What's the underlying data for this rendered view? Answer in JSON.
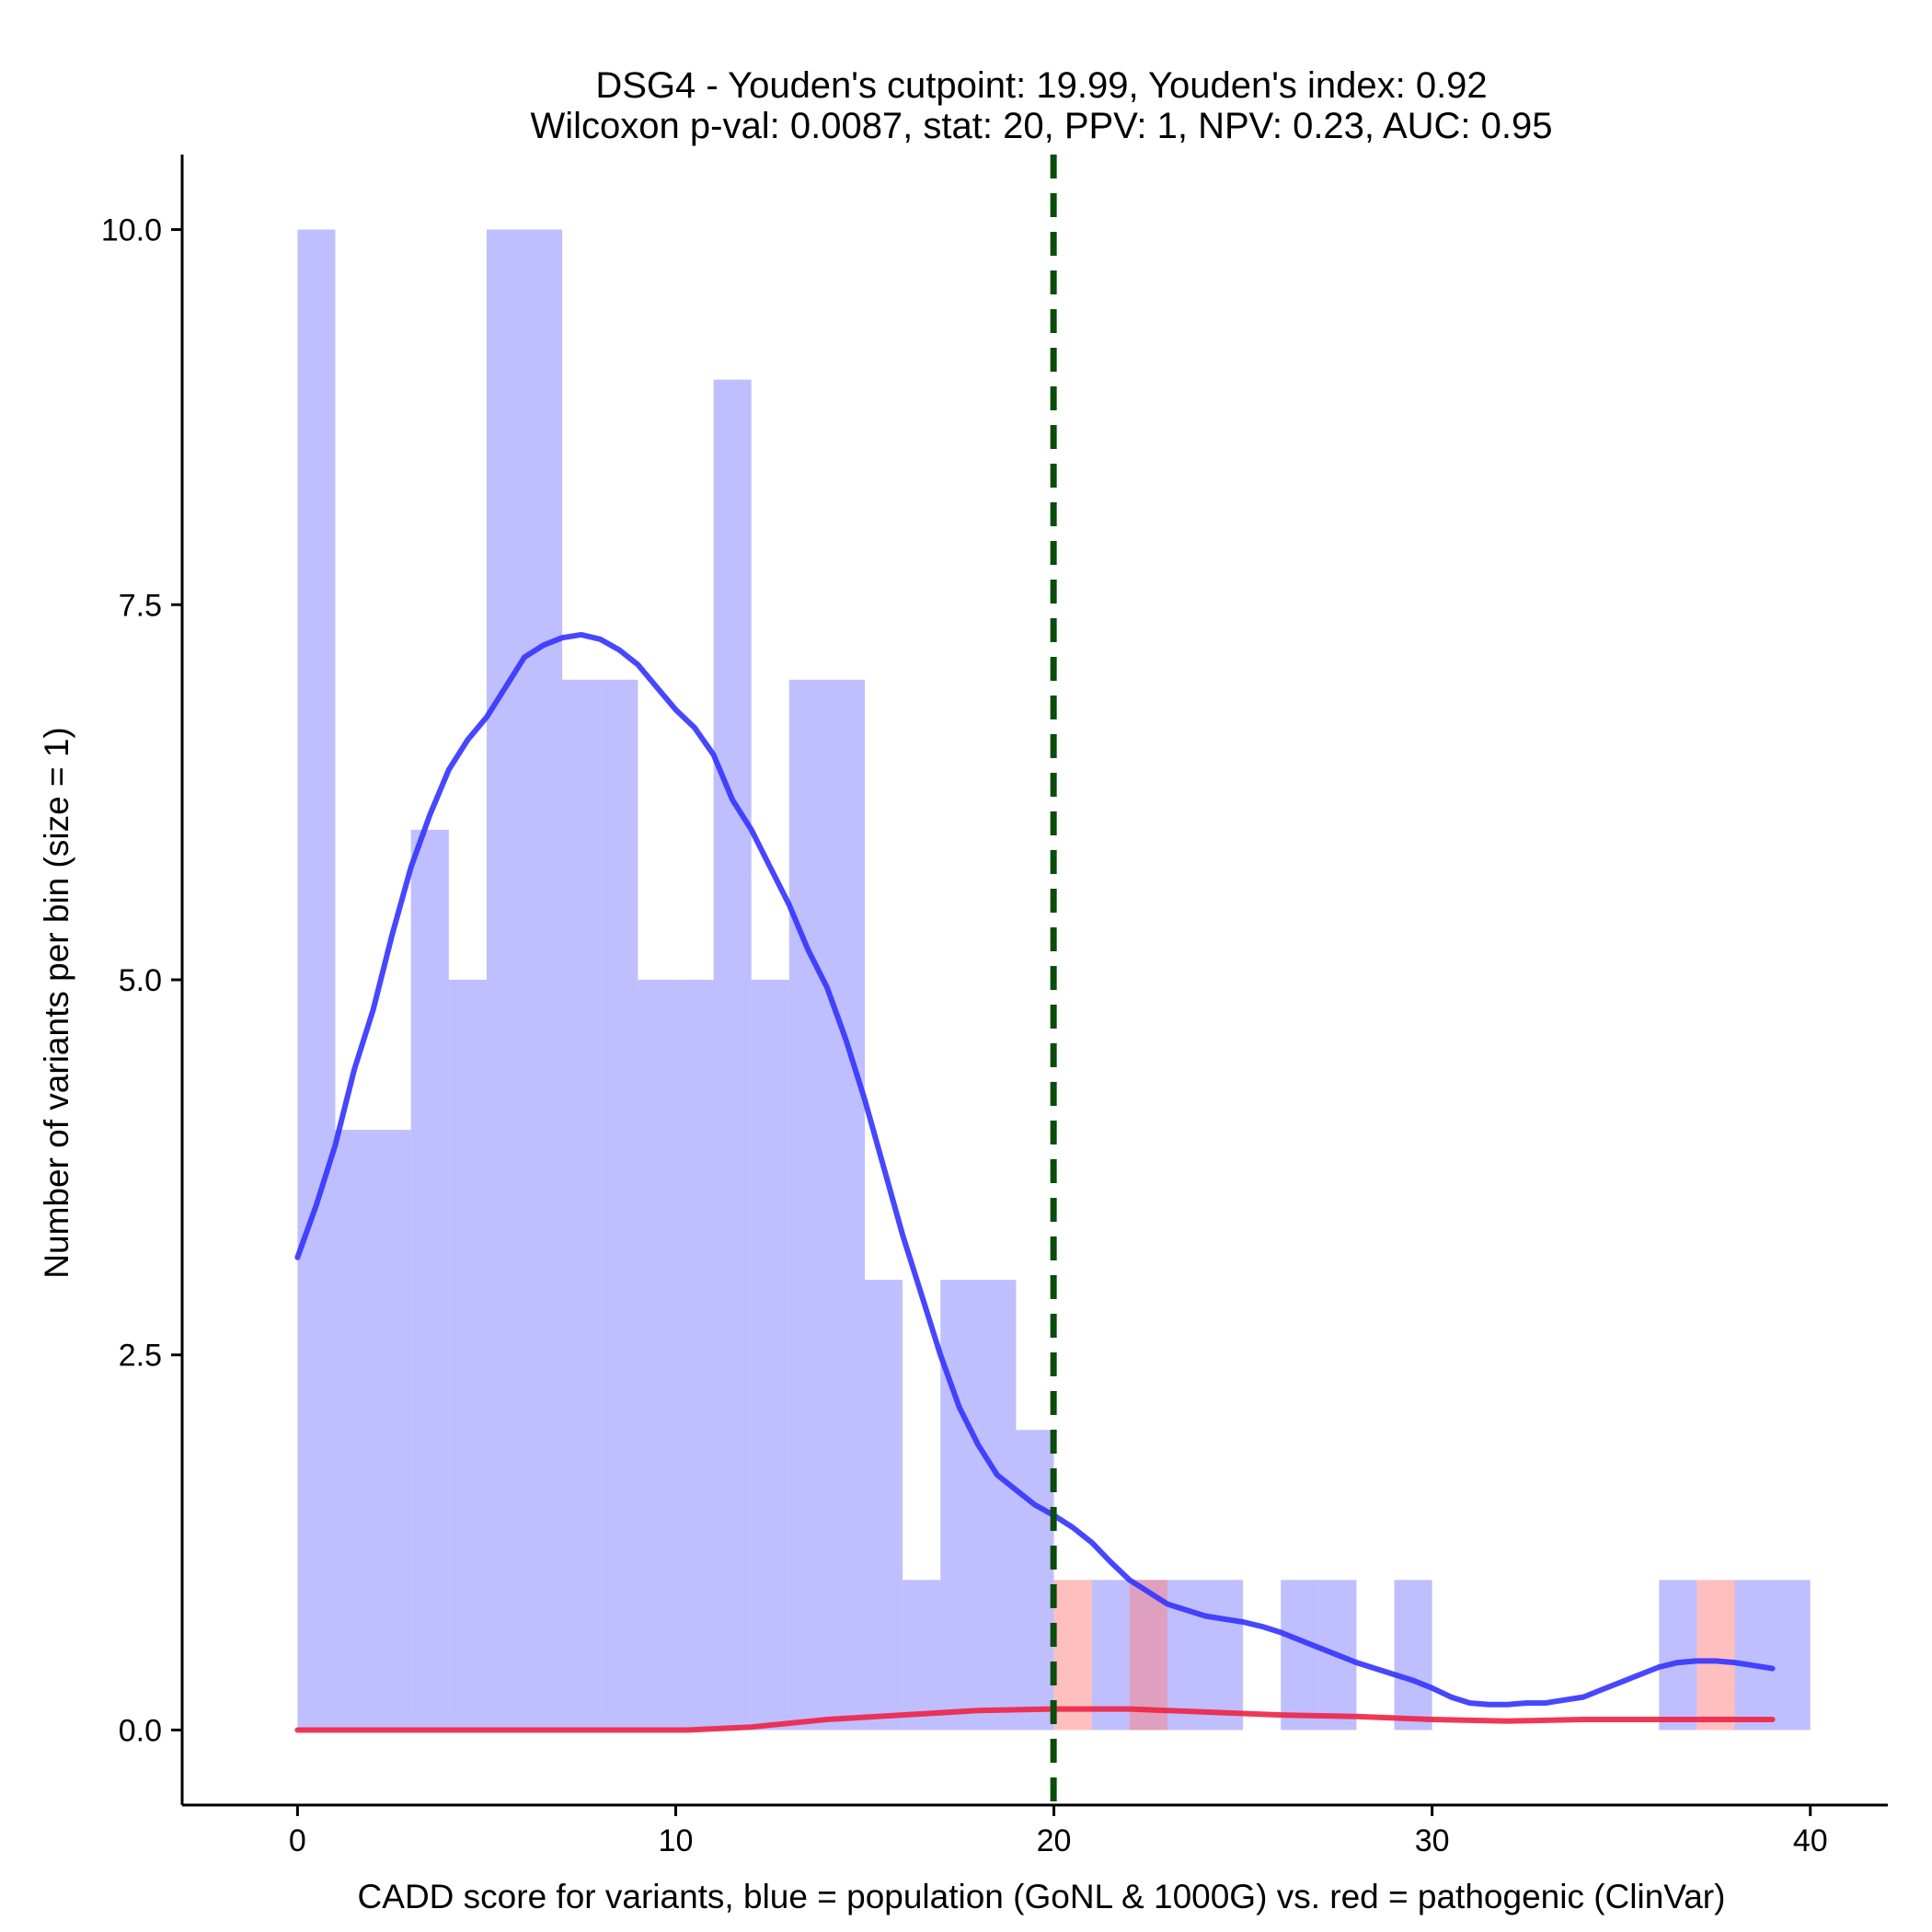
{
  "chart_data": {
    "type": "bar",
    "title": "DSG4 - Youden's cutpoint: 19.99, Youden's index: 0.92",
    "subtitle": "Wilcoxon p-val: 0.0087, stat: 20, PPV: 1, NPV: 0.23, AUC: 0.95",
    "xlabel": "CADD score for variants, blue = population (GoNL & 1000G) vs. red = pathogenic (ClinVar)",
    "ylabel": "Number of variants per bin (size = 1)",
    "xlim": [
      -3.05,
      42.05
    ],
    "ylim": [
      -0.5,
      10.5
    ],
    "x_ticks": [
      0,
      10,
      20,
      30,
      40
    ],
    "x_tick_labels": [
      "0",
      "10",
      "20",
      "30",
      "40"
    ],
    "y_ticks": [
      0,
      2.5,
      5,
      7.5,
      10
    ],
    "y_tick_labels": [
      "0.0",
      "2.5",
      "5.0",
      "7.5",
      "10.0"
    ],
    "bin_size": 1,
    "cutpoint": 19.99,
    "cutpoint_color": "#0b4d0b",
    "series": [
      {
        "name": "population (GoNL & 1000G)",
        "color": "#8080ff",
        "line_color": "#3333ff",
        "bars": [
          {
            "x": 0,
            "count": 10
          },
          {
            "x": 1,
            "count": 4
          },
          {
            "x": 2,
            "count": 4
          },
          {
            "x": 3,
            "count": 6
          },
          {
            "x": 4,
            "count": 5
          },
          {
            "x": 5,
            "count": 10
          },
          {
            "x": 6,
            "count": 10
          },
          {
            "x": 7,
            "count": 7
          },
          {
            "x": 8,
            "count": 7
          },
          {
            "x": 9,
            "count": 5
          },
          {
            "x": 10,
            "count": 5
          },
          {
            "x": 11,
            "count": 9
          },
          {
            "x": 12,
            "count": 5
          },
          {
            "x": 13,
            "count": 7
          },
          {
            "x": 14,
            "count": 7
          },
          {
            "x": 15,
            "count": 3
          },
          {
            "x": 16,
            "count": 1
          },
          {
            "x": 17,
            "count": 3
          },
          {
            "x": 18,
            "count": 3
          },
          {
            "x": 19,
            "count": 2
          },
          {
            "x": 21,
            "count": 1
          },
          {
            "x": 22,
            "count": 1
          },
          {
            "x": 23,
            "count": 1
          },
          {
            "x": 24,
            "count": 1
          },
          {
            "x": 26,
            "count": 1
          },
          {
            "x": 27,
            "count": 1
          },
          {
            "x": 29,
            "count": 1
          },
          {
            "x": 36,
            "count": 1
          },
          {
            "x": 38,
            "count": 1
          },
          {
            "x": 39,
            "count": 1
          }
        ],
        "density_curve": [
          [
            0,
            3.15
          ],
          [
            0.5,
            3.5
          ],
          [
            1,
            3.9
          ],
          [
            1.5,
            4.4
          ],
          [
            2,
            4.8
          ],
          [
            2.5,
            5.3
          ],
          [
            3,
            5.75
          ],
          [
            3.5,
            6.1
          ],
          [
            4,
            6.4
          ],
          [
            4.5,
            6.6
          ],
          [
            5,
            6.75
          ],
          [
            5.5,
            6.95
          ],
          [
            6,
            7.15
          ],
          [
            6.5,
            7.23
          ],
          [
            7,
            7.28
          ],
          [
            7.5,
            7.3
          ],
          [
            8,
            7.27
          ],
          [
            8.5,
            7.2
          ],
          [
            9,
            7.1
          ],
          [
            9.5,
            6.95
          ],
          [
            10,
            6.8
          ],
          [
            10.5,
            6.68
          ],
          [
            11,
            6.5
          ],
          [
            11.5,
            6.2
          ],
          [
            12,
            6.0
          ],
          [
            12.5,
            5.75
          ],
          [
            13,
            5.5
          ],
          [
            13.5,
            5.2
          ],
          [
            14,
            4.95
          ],
          [
            14.5,
            4.6
          ],
          [
            15,
            4.2
          ],
          [
            15.5,
            3.75
          ],
          [
            16,
            3.3
          ],
          [
            16.5,
            2.9
          ],
          [
            17,
            2.5
          ],
          [
            17.5,
            2.15
          ],
          [
            18,
            1.9
          ],
          [
            18.5,
            1.7
          ],
          [
            19,
            1.6
          ],
          [
            19.5,
            1.5
          ],
          [
            20,
            1.43
          ],
          [
            20.5,
            1.35
          ],
          [
            21,
            1.25
          ],
          [
            21.5,
            1.12
          ],
          [
            22,
            1.0
          ],
          [
            22.5,
            0.92
          ],
          [
            23,
            0.84
          ],
          [
            23.5,
            0.8
          ],
          [
            24,
            0.76
          ],
          [
            24.5,
            0.74
          ],
          [
            25,
            0.72
          ],
          [
            25.5,
            0.69
          ],
          [
            26,
            0.65
          ],
          [
            26.5,
            0.6
          ],
          [
            27,
            0.55
          ],
          [
            27.5,
            0.5
          ],
          [
            28,
            0.45
          ],
          [
            28.5,
            0.41
          ],
          [
            29,
            0.37
          ],
          [
            29.5,
            0.33
          ],
          [
            30,
            0.28
          ],
          [
            30.5,
            0.22
          ],
          [
            31,
            0.18
          ],
          [
            31.5,
            0.17
          ],
          [
            32,
            0.17
          ],
          [
            32.5,
            0.18
          ],
          [
            33,
            0.18
          ],
          [
            33.5,
            0.2
          ],
          [
            34,
            0.22
          ],
          [
            34.5,
            0.27
          ],
          [
            35,
            0.32
          ],
          [
            35.5,
            0.37
          ],
          [
            36,
            0.42
          ],
          [
            36.5,
            0.45
          ],
          [
            37,
            0.46
          ],
          [
            37.5,
            0.46
          ],
          [
            38,
            0.45
          ],
          [
            38.5,
            0.43
          ],
          [
            39,
            0.41
          ]
        ]
      },
      {
        "name": "pathogenic (ClinVar)",
        "color": "#ff8080",
        "line_color": "#ee2244",
        "bars": [
          {
            "x": 20,
            "count": 1
          },
          {
            "x": 22,
            "count": 1
          },
          {
            "x": 37,
            "count": 1
          }
        ],
        "density_curve": [
          [
            0,
            0.0
          ],
          [
            5,
            0.0
          ],
          [
            10.3,
            0.0
          ],
          [
            12,
            0.02
          ],
          [
            14,
            0.07
          ],
          [
            16,
            0.1
          ],
          [
            18,
            0.13
          ],
          [
            20,
            0.14
          ],
          [
            22,
            0.14
          ],
          [
            24,
            0.12
          ],
          [
            26,
            0.1
          ],
          [
            28,
            0.09
          ],
          [
            30,
            0.07
          ],
          [
            32,
            0.06
          ],
          [
            34,
            0.07
          ],
          [
            36,
            0.07
          ],
          [
            38,
            0.07
          ],
          [
            39,
            0.07
          ]
        ]
      }
    ]
  }
}
